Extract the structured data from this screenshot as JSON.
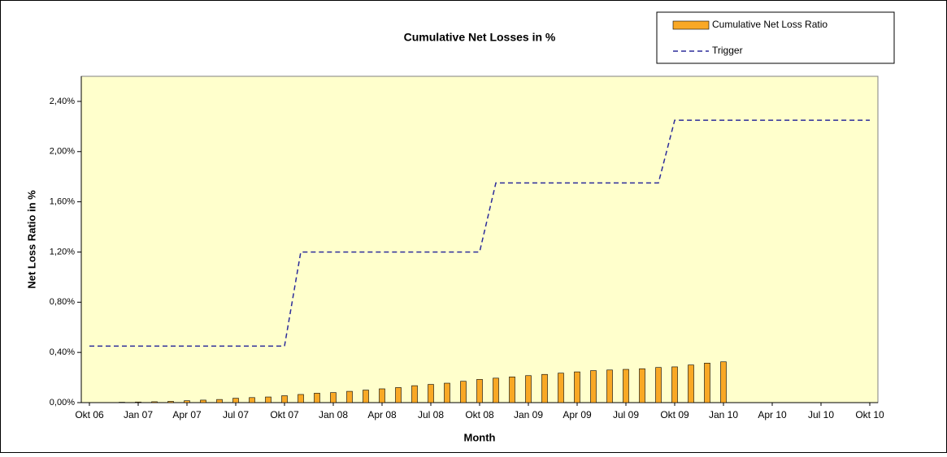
{
  "chart_data": {
    "type": "bar_line",
    "title": "Cumulative Net Losses in %",
    "xlabel": "Month",
    "ylabel": "Net Loss Ratio in %",
    "categories": [
      "Okt 06",
      null,
      null,
      "Jan 07",
      null,
      null,
      "Apr 07",
      null,
      null,
      "Jul 07",
      null,
      null,
      "Okt 07",
      null,
      null,
      "Jan 08",
      null,
      null,
      "Apr 08",
      null,
      null,
      "Jul 08",
      null,
      null,
      "Okt 08",
      null,
      null,
      "Jan 09",
      null,
      null,
      "Apr 09",
      null,
      null,
      "Jul 09",
      null,
      null,
      "Okt 09",
      null,
      null,
      "Jan 10",
      null,
      null,
      "Apr 10",
      null,
      null,
      "Jul 10",
      null,
      null,
      "Okt 10"
    ],
    "series": [
      {
        "name": "Cumulative Net Loss Ratio",
        "color": "#f9a825",
        "kind": "bar",
        "values": [
          null,
          null,
          0.003,
          0.005,
          0.007,
          0.01,
          0.015,
          0.02,
          0.025,
          0.035,
          0.04,
          0.045,
          0.055,
          0.065,
          0.075,
          0.08,
          0.09,
          0.1,
          0.11,
          0.12,
          0.135,
          0.145,
          0.155,
          0.17,
          0.185,
          0.195,
          0.205,
          0.215,
          0.225,
          0.235,
          0.245,
          0.255,
          0.26,
          0.265,
          0.27,
          0.28,
          0.285,
          0.3,
          0.315,
          0.325,
          null,
          null,
          null,
          null,
          null,
          null,
          null,
          null,
          null
        ]
      },
      {
        "name": "Trigger",
        "color": "#2b2b9a",
        "kind": "line",
        "values": [
          0.45,
          0.45,
          0.45,
          0.45,
          0.45,
          0.45,
          0.45,
          0.45,
          0.45,
          0.45,
          0.45,
          0.45,
          0.45,
          1.2,
          1.2,
          1.2,
          1.2,
          1.2,
          1.2,
          1.2,
          1.2,
          1.2,
          1.2,
          1.2,
          1.2,
          1.75,
          1.75,
          1.75,
          1.75,
          1.75,
          1.75,
          1.75,
          1.75,
          1.75,
          1.75,
          1.75,
          2.25,
          2.25,
          2.25,
          2.25,
          2.25,
          2.25,
          2.25,
          2.25,
          2.25,
          2.25,
          2.25,
          2.25,
          2.25
        ]
      }
    ],
    "ylim": [
      0,
      2.6
    ],
    "yticks": [
      {
        "value": 0,
        "label": "0,00%"
      },
      {
        "value": 0.4,
        "label": "0,40%"
      },
      {
        "value": 0.8,
        "label": "0,80%"
      },
      {
        "value": 1.2,
        "label": "1,20%"
      },
      {
        "value": 1.6,
        "label": "1,60%"
      },
      {
        "value": 2.0,
        "label": "2,00%"
      },
      {
        "value": 2.4,
        "label": "2,40%"
      }
    ],
    "plot_background": "#ffffcc",
    "legend": "top-right"
  }
}
